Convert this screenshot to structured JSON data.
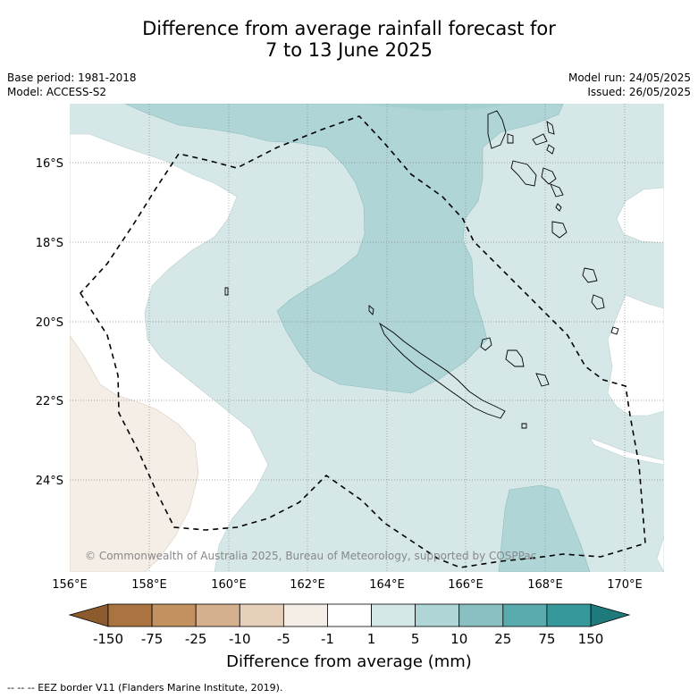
{
  "title": {
    "line1": "Difference from average rainfall forecast for",
    "line2": "7 to 13 June 2025"
  },
  "meta": {
    "base_period": "Base period: 1981-2018",
    "model": "Model: ACCESS-S2",
    "model_run": "Model run: 24/05/2025",
    "issued": "Issued: 26/05/2025"
  },
  "map": {
    "credit": "© Commonwealth of Australia 2025, Bureau of Meteorology, supported by COSPPac",
    "lon_ticks": [
      "156°E",
      "158°E",
      "160°E",
      "162°E",
      "164°E",
      "166°E",
      "168°E",
      "170°E"
    ],
    "lat_ticks": [
      "16°S",
      "18°S",
      "20°S",
      "22°S",
      "24°S"
    ],
    "extent": {
      "lon": [
        156,
        171
      ],
      "lat": [
        -26.2,
        -14.4
      ]
    }
  },
  "colorbar": {
    "title": "Difference from average (mm)",
    "tick_labels": [
      "-150",
      "-75",
      "-25",
      "-10",
      "-5",
      "-1",
      "1",
      "5",
      "10",
      "25",
      "75",
      "150"
    ],
    "colors": [
      "#8c5a2c",
      "#a97440",
      "#c2915f",
      "#d4b08e",
      "#e7d0ba",
      "#f4eee6",
      "#ffffff",
      "#d5e8e7",
      "#afd5d6",
      "#8ac0c1",
      "#59abae",
      "#35999b",
      "#1f7a7c"
    ]
  },
  "footnote": "--  --  -- EEZ border V11 (Flanders Marine Institute, 2019)."
}
